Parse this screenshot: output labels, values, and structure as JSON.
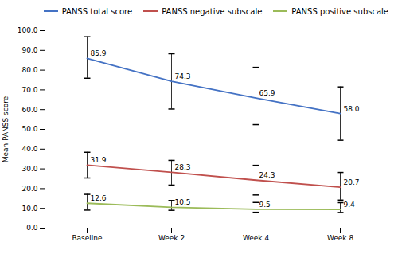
{
  "chart_data": {
    "type": "line",
    "categories": [
      "Baseline",
      "Week 2",
      "Week 4",
      "Week 8"
    ],
    "series": [
      {
        "name": "PANSS total score",
        "color": "#4472C4",
        "values": [
          85.9,
          74.3,
          65.9,
          58.0
        ],
        "value_labels": [
          "85.9",
          "74.3",
          "65.9",
          "58.0"
        ],
        "yerr_upper": [
          11.0,
          14.0,
          15.5,
          13.5
        ],
        "yerr_lower": [
          10.0,
          14.0,
          13.5,
          13.5
        ]
      },
      {
        "name": "PANSS negative subscale",
        "color": "#C0504D",
        "values": [
          31.9,
          28.3,
          24.3,
          20.7
        ],
        "value_labels": [
          "31.9",
          "28.3",
          "24.3",
          "20.7"
        ],
        "yerr_upper": [
          6.5,
          6.0,
          7.5,
          7.5
        ],
        "yerr_lower": [
          6.5,
          6.5,
          7.5,
          6.5
        ]
      },
      {
        "name": "PANSS positive subscale",
        "color": "#9BBB59",
        "values": [
          12.6,
          10.5,
          9.5,
          9.4
        ],
        "value_labels": [
          "12.6",
          "10.5",
          "9.5",
          "9.4"
        ],
        "yerr_upper": [
          4.5,
          3.5,
          3.5,
          3.5
        ],
        "yerr_lower": [
          3.5,
          1.5,
          1.5,
          1.5
        ]
      }
    ],
    "ylabel": "Mean PANSS score",
    "ylim": [
      0.0,
      100.0
    ],
    "yticks": [
      {
        "value": 0,
        "label": "0.0"
      },
      {
        "value": 10,
        "label": "10.0"
      },
      {
        "value": 20,
        "label": "20.0"
      },
      {
        "value": 30,
        "label": "30.0"
      },
      {
        "value": 40,
        "label": "40.0"
      },
      {
        "value": 50,
        "label": "50.0"
      },
      {
        "value": 60,
        "label": "60.0"
      },
      {
        "value": 70,
        "label": "70.0"
      },
      {
        "value": 80,
        "label": "80.0"
      },
      {
        "value": 90,
        "label": "90.0"
      },
      {
        "value": 100,
        "label": "100.0"
      }
    ],
    "legend": "upper right",
    "data_labels": true,
    "grid": false
  }
}
